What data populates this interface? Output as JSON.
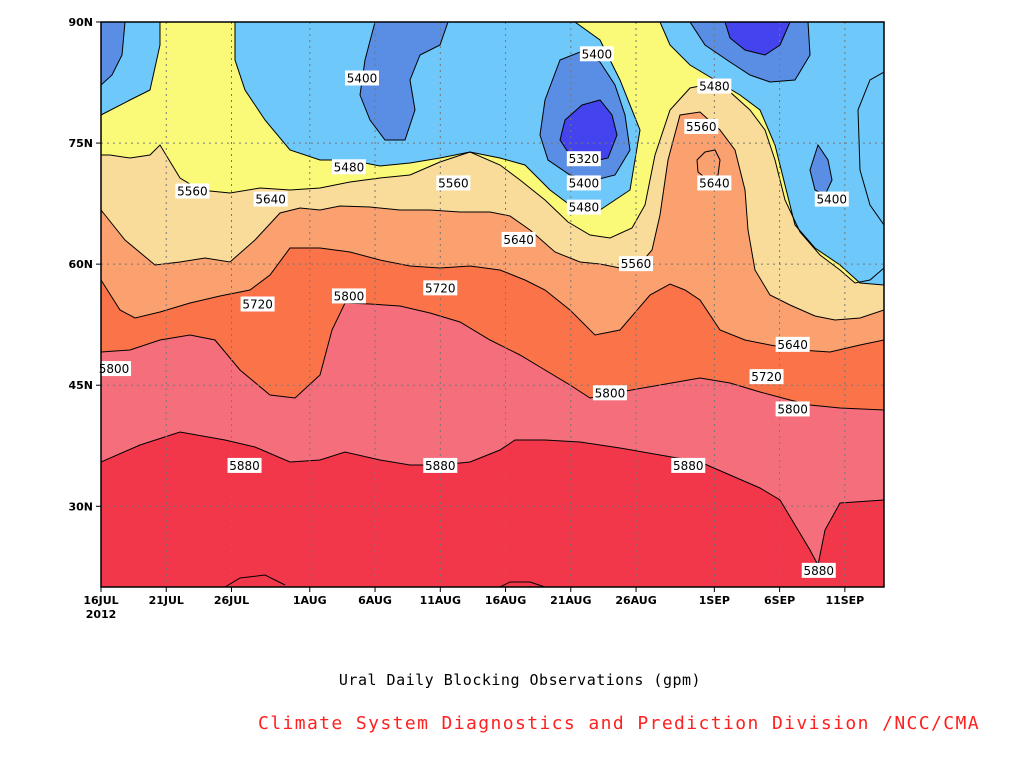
{
  "chart_data": {
    "type": "filled-contour",
    "title": "Ural Daily Blocking Observations (gpm)",
    "credit": "Climate System Diagnostics and Prediction Division /NCC/CMA",
    "x_ticks": [
      "16JUL",
      "21JUL",
      "26JUL",
      "1AUG",
      "6AUG",
      "11AUG",
      "16AUG",
      "21AUG",
      "26AUG",
      "1SEP",
      "6SEP",
      "11SEP"
    ],
    "x_year_label": "2012",
    "x_range": [
      "2012-07-16",
      "2012-09-14"
    ],
    "y_ticks": [
      "30N",
      "45N",
      "60N",
      "75N",
      "90N"
    ],
    "y_range": [
      20,
      90
    ],
    "grid": "dotted",
    "levels": [
      5320,
      5400,
      5480,
      5560,
      5640,
      5720,
      5800,
      5880
    ],
    "level_colors": {
      "below_5320": "#4444ee",
      "5320_5400": "#5a8ee4",
      "5400_5480": "#6ec8fa",
      "5480_5560": "#fafa78",
      "5560_5640": "#fadc9a",
      "5640_5720": "#fba170",
      "5720_5800": "#fb7349",
      "5800_5880": "#f46f7b",
      "above_5880": "#f2374b"
    },
    "contour_labels": [
      {
        "text": "5400",
        "date": "2012-08-23",
        "lat": 86
      },
      {
        "text": "5400",
        "date": "2012-08-05",
        "lat": 83
      },
      {
        "text": "5480",
        "date": "2012-09-01",
        "lat": 82
      },
      {
        "text": "5560",
        "date": "2012-08-31",
        "lat": 77
      },
      {
        "text": "5320",
        "date": "2012-08-22",
        "lat": 73
      },
      {
        "text": "5640",
        "date": "2012-09-01",
        "lat": 70
      },
      {
        "text": "5400",
        "date": "2012-08-22",
        "lat": 70
      },
      {
        "text": "5480",
        "date": "2012-08-04",
        "lat": 72
      },
      {
        "text": "5560",
        "date": "2012-08-12",
        "lat": 70
      },
      {
        "text": "5560",
        "date": "2012-07-23",
        "lat": 69
      },
      {
        "text": "5400",
        "date": "2012-09-10",
        "lat": 68
      },
      {
        "text": "5480",
        "date": "2012-08-22",
        "lat": 67
      },
      {
        "text": "5640",
        "date": "2012-07-29",
        "lat": 68
      },
      {
        "text": "5640",
        "date": "2012-08-17",
        "lat": 63
      },
      {
        "text": "5560",
        "date": "2012-08-26",
        "lat": 60
      },
      {
        "text": "5720",
        "date": "2012-08-11",
        "lat": 57
      },
      {
        "text": "5800",
        "date": "2012-08-04",
        "lat": 56
      },
      {
        "text": "5720",
        "date": "2012-07-28",
        "lat": 55
      },
      {
        "text": "5640",
        "date": "2012-09-07",
        "lat": 50
      },
      {
        "text": "5800",
        "date": "2012-07-17",
        "lat": 47
      },
      {
        "text": "5720",
        "date": "2012-09-05",
        "lat": 46
      },
      {
        "text": "5800",
        "date": "2012-08-24",
        "lat": 44
      },
      {
        "text": "5800",
        "date": "2012-09-07",
        "lat": 42
      },
      {
        "text": "5880",
        "date": "2012-07-27",
        "lat": 35
      },
      {
        "text": "5880",
        "date": "2012-08-11",
        "lat": 35
      },
      {
        "text": "5880",
        "date": "2012-08-30",
        "lat": 35
      },
      {
        "text": "5880",
        "date": "2012-09-09",
        "lat": 22
      }
    ]
  }
}
